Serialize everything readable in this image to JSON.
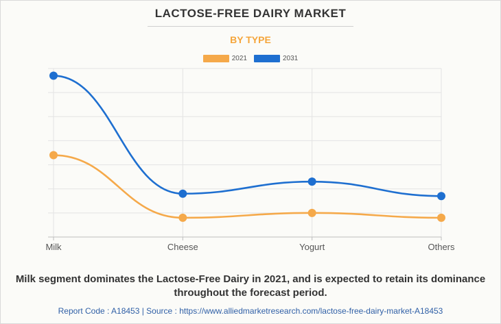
{
  "header": {
    "title": "LACTOSE-FREE DAIRY MARKET",
    "subtitle": "BY TYPE"
  },
  "colors": {
    "series_2021": "#f5a94a",
    "series_2031": "#1e6fd0",
    "subtitle": "#f5a53a",
    "grid": "#e3e3e3",
    "footer": "#2f5fa6"
  },
  "chart_data": {
    "type": "line",
    "categories": [
      "Milk",
      "Cheese",
      "Yogurt",
      "Others"
    ],
    "series": [
      {
        "name": "2021",
        "values": [
          3.4,
          0.8,
          1.0,
          0.8
        ]
      },
      {
        "name": "2031",
        "values": [
          6.7,
          1.8,
          2.3,
          1.7
        ]
      }
    ],
    "ylim": [
      0,
      7
    ],
    "grid": true,
    "legend_position": "top-center",
    "curve": "smooth",
    "y_tick_labels_shown": false
  },
  "caption": "Milk segment dominates the Lactose-Free Dairy in 2021, and is expected to retain its dominance throughout the forecast period.",
  "footer": "Report Code : A18453  |  Source : https://www.alliedmarketresearch.com/lactose-free-dairy-market-A18453"
}
